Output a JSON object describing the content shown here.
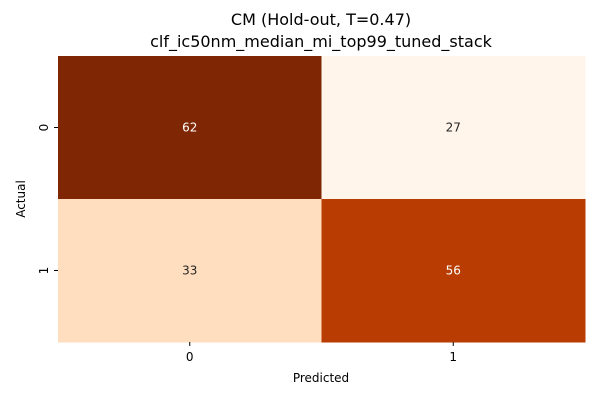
{
  "chart_data": {
    "type": "heatmap",
    "title": "CM (Hold-out, T=0.47)",
    "subtitle": "clf_ic50nm_median_mi_top99_tuned_stack",
    "xlabel": "Predicted",
    "ylabel": "Actual",
    "x_categories": [
      "0",
      "1"
    ],
    "y_categories": [
      "0",
      "1"
    ],
    "values": [
      [
        62,
        27
      ],
      [
        33,
        56
      ]
    ],
    "colormap": "Oranges",
    "colorbar": false,
    "annotations": true
  }
}
